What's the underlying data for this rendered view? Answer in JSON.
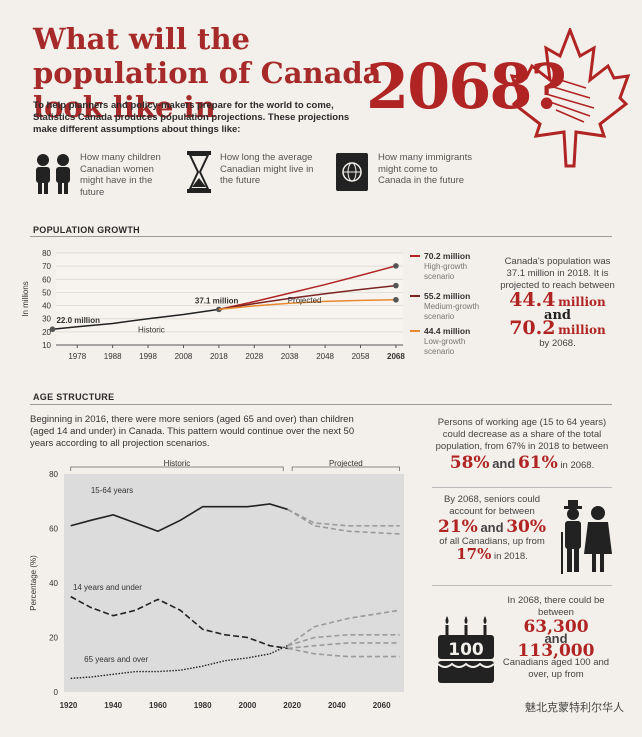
{
  "header": {
    "title": "What will the population of Canada look like in",
    "year": "2068?",
    "intro": "To help planners and policy-makers prepare for the world to come, Statistics Canada produces population projections. These projections make different assumptions about things like:"
  },
  "assumptions": [
    {
      "icon": "children-icon",
      "text": "How many children Canadian women might have in the future"
    },
    {
      "icon": "hourglass-icon",
      "text": "How long the average Canadian might live in the future"
    },
    {
      "icon": "passport-icon",
      "text": "How many immigrants might come to Canada in the future"
    }
  ],
  "population_growth": {
    "heading": "POPULATION GROWTH",
    "ylabel": "In millions",
    "label_start": "22.0 million",
    "label_2018": "37.1 million",
    "historic": "Historic",
    "projected": "Projected",
    "scenarios": [
      {
        "value": "70.2 million",
        "label": "High-growth scenario",
        "color": "#b02424"
      },
      {
        "value": "55.2 million",
        "label": "Medium-growth scenario",
        "color": "#7a2424"
      },
      {
        "value": "44.4 million",
        "label": "Low-growth scenario",
        "color": "#e8892e"
      }
    ],
    "side_text1": "Canada's population was 37.1 million in 2018. It is projected to reach between",
    "side_big1": "44.4",
    "side_unit1": "million",
    "side_and": "and",
    "side_big2": "70.2",
    "side_unit2": "million",
    "side_text2": "by 2068."
  },
  "age_structure": {
    "heading": "AGE STRUCTURE",
    "intro": "Beginning in 2016, there were more seniors (aged 65 and over) than children (aged 14 and under) in Canada. This pattern would continue over the next 50 years according to all projection scenarios.",
    "historic": "Historic",
    "projected": "Projected",
    "ylabel": "Percentage (%)",
    "series_labels": [
      "15-64 years",
      "14 years and under",
      "65 years and over"
    ],
    "side1_text": "Persons of working age (15 to 64 years) could decrease as a share of the total population, from 67% in 2018 to between",
    "side1_v1": "58%",
    "side1_and": "and",
    "side1_v2": "61%",
    "side1_end": "in 2068.",
    "side2_text": "By 2068, seniors could account for between",
    "side2_v1": "21%",
    "side2_and": "and",
    "side2_v2": "30%",
    "side2_mid": "of all Canadians, up from",
    "side2_v3": "17%",
    "side2_end": "in 2018.",
    "side3_text": "In 2068, there could be between",
    "side3_v1": "63,300",
    "side3_and": "and",
    "side3_v2": "113,000",
    "side3_end": "Canadians aged 100 and over, up from",
    "cake_label": "100"
  },
  "watermark": "魅北克蒙特利尔华人",
  "chart_data": [
    {
      "type": "line",
      "title": "POPULATION GROWTH",
      "ylabel": "In millions",
      "ylim": [
        10,
        80
      ],
      "yticks": [
        10,
        20,
        30,
        40,
        50,
        60,
        70,
        80
      ],
      "xticks": [
        1978,
        1988,
        1998,
        2008,
        2018,
        2028,
        2038,
        2048,
        2058,
        2068
      ],
      "xlim": [
        1972,
        2070
      ],
      "series": [
        {
          "name": "Historic",
          "x": [
            1971,
            1978,
            1988,
            1998,
            2008,
            2018
          ],
          "values": [
            22.0,
            23.9,
            26.4,
            30.0,
            33.2,
            37.1
          ]
        },
        {
          "name": "High-growth scenario",
          "x": [
            2018,
            2028,
            2038,
            2048,
            2058,
            2068
          ],
          "values": [
            37.1,
            43.0,
            49.5,
            56.0,
            63.0,
            70.2
          ]
        },
        {
          "name": "Medium-growth scenario",
          "x": [
            2018,
            2028,
            2038,
            2048,
            2058,
            2068
          ],
          "values": [
            37.1,
            41.5,
            45.5,
            49.0,
            52.2,
            55.2
          ]
        },
        {
          "name": "Low-growth scenario",
          "x": [
            2018,
            2028,
            2038,
            2048,
            2058,
            2068
          ],
          "values": [
            37.1,
            39.8,
            41.8,
            43.2,
            44.0,
            44.4
          ]
        }
      ]
    },
    {
      "type": "line",
      "title": "AGE STRUCTURE",
      "ylabel": "Percentage (%)",
      "ylim": [
        0,
        80
      ],
      "yticks": [
        0,
        20,
        40,
        60,
        80
      ],
      "xticks": [
        1920,
        1940,
        1960,
        1980,
        2000,
        2020,
        2040,
        2060
      ],
      "xlim": [
        1918,
        2070
      ],
      "series": [
        {
          "name": "15-64 years",
          "x": [
            1921,
            1930,
            1940,
            1950,
            1960,
            1970,
            1980,
            1990,
            2000,
            2010,
            2018
          ],
          "values": [
            61,
            63,
            65,
            62,
            59,
            63,
            68,
            68,
            68,
            69,
            67
          ]
        },
        {
          "name": "14 years and under",
          "x": [
            1921,
            1930,
            1940,
            1950,
            1960,
            1970,
            1980,
            1990,
            2000,
            2010,
            2018
          ],
          "values": [
            35,
            31,
            28,
            30,
            34,
            30,
            23,
            21,
            20,
            17,
            16
          ]
        },
        {
          "name": "65 years and over",
          "x": [
            1921,
            1930,
            1940,
            1950,
            1960,
            1970,
            1980,
            1990,
            2000,
            2010,
            2018
          ],
          "values": [
            5,
            5.5,
            6.5,
            7.5,
            7.5,
            8,
            9.5,
            11.5,
            12.5,
            14,
            17
          ]
        },
        {
          "name": "15-64 projected high",
          "x": [
            2018,
            2030,
            2045,
            2068
          ],
          "values": [
            67,
            62,
            61,
            61
          ]
        },
        {
          "name": "15-64 projected low",
          "x": [
            2018,
            2030,
            2045,
            2068
          ],
          "values": [
            67,
            61,
            59,
            58
          ]
        },
        {
          "name": "65+ projected high",
          "x": [
            2018,
            2030,
            2045,
            2068
          ],
          "values": [
            17,
            24,
            27,
            30
          ]
        },
        {
          "name": "65+ projected low",
          "x": [
            2018,
            2030,
            2045,
            2068
          ],
          "values": [
            17,
            20,
            21,
            21
          ]
        },
        {
          "name": "14 and under projected high",
          "x": [
            2018,
            2030,
            2045,
            2068
          ],
          "values": [
            16,
            17,
            18,
            18
          ]
        },
        {
          "name": "14 and under projected low",
          "x": [
            2018,
            2030,
            2045,
            2068
          ],
          "values": [
            16,
            14,
            13,
            13
          ]
        }
      ]
    }
  ]
}
